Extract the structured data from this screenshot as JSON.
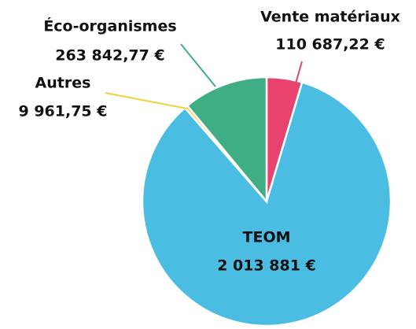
{
  "chart_data": {
    "type": "pie",
    "categories": [
      "Vente matériaux",
      "TEOM",
      "Autres",
      "Éco-organismes"
    ],
    "values": [
      110687.22,
      2013881,
      9961.75,
      263842.77
    ],
    "value_labels": [
      "110 687,22 €",
      "2 013 881 €",
      "9 961,75 €",
      "263 842,77 €"
    ],
    "colors": [
      "#e8436f",
      "#4bbde3",
      "#f2d23a",
      "#3fae84"
    ]
  }
}
